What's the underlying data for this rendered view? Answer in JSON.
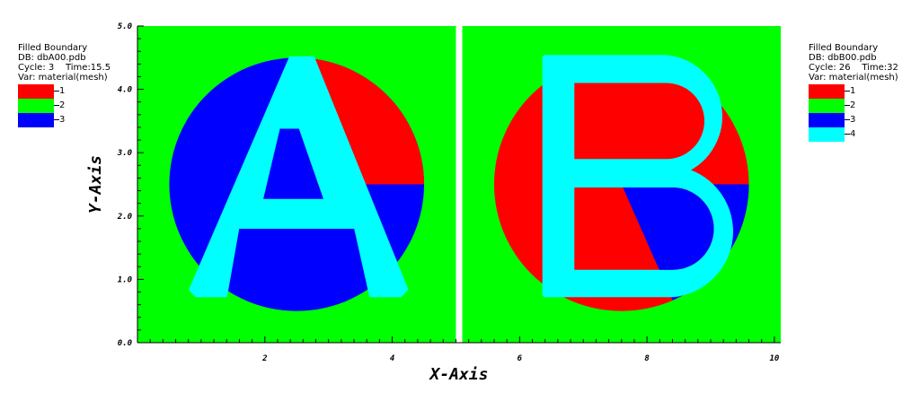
{
  "legends": [
    {
      "plot": "Filled Boundary",
      "db": "DB: dbA00.pdb",
      "cycle": "Cycle: 3",
      "time": "Time:15.5",
      "var": "Var: material(mesh)",
      "items": [
        {
          "label": "1",
          "color": "#ff0000"
        },
        {
          "label": "2",
          "color": "#00ff00"
        },
        {
          "label": "3",
          "color": "#0000ff"
        }
      ]
    },
    {
      "plot": "Filled Boundary",
      "db": "DB: dbB00.pdb",
      "cycle": "Cycle: 26",
      "time": "Time:32",
      "var": "Var: material(mesh)",
      "items": [
        {
          "label": "1",
          "color": "#ff0000"
        },
        {
          "label": "2",
          "color": "#00ff00"
        },
        {
          "label": "3",
          "color": "#0000ff"
        },
        {
          "label": "4",
          "color": "#00ffff"
        }
      ]
    }
  ],
  "chart_data": {
    "type": "heatmap",
    "xlabel": "X-Axis",
    "ylabel": "Y-Axis",
    "xlim": [
      0,
      10.1
    ],
    "ylim": [
      0,
      5
    ],
    "xticks": [
      "2",
      "4",
      "6",
      "8",
      "10"
    ],
    "yticks": [
      "0.0",
      "1.0",
      "2.0",
      "3.0",
      "4.0",
      "5.0"
    ],
    "colors": {
      "1": "#ff0000",
      "2": "#00ff00",
      "3": "#0000ff",
      "4": "#00ffff"
    },
    "regions": [
      {
        "name": "A",
        "domain_x": [
          0,
          5.0
        ],
        "domain_y": [
          0,
          5
        ],
        "background_material": "2",
        "disk": {
          "cx": 2.5,
          "cy": 2.5,
          "r": 2.0
        },
        "disk_materials": {
          "upper_right": "1",
          "upper_left_wedge": "3",
          "lower": "3"
        },
        "letter": "A",
        "letter_material": "4"
      },
      {
        "name": "B",
        "domain_x": [
          5.1,
          10.1
        ],
        "domain_y": [
          0,
          5
        ],
        "background_material": "2",
        "disk": {
          "cx": 7.6,
          "cy": 2.5,
          "r": 2.0
        },
        "disk_materials": {
          "main": "1",
          "lower_right_wedge": "3"
        },
        "letter": "B",
        "letter_material": "4"
      }
    ]
  }
}
